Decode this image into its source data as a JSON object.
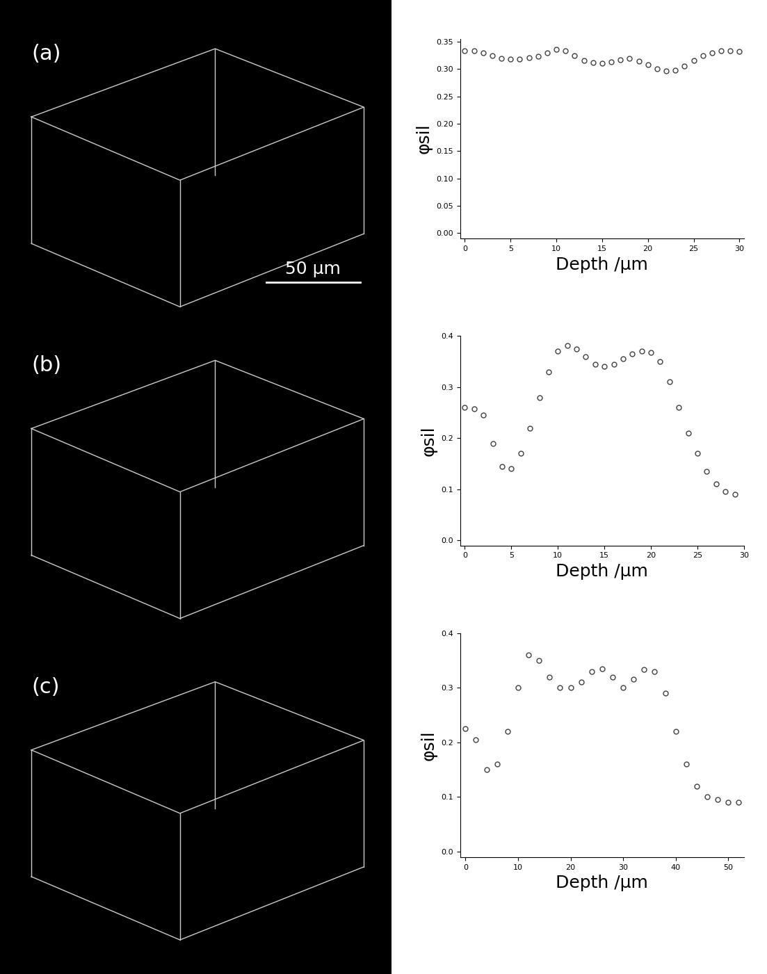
{
  "panels": [
    {
      "label": "(a)"
    },
    {
      "label": "(b)"
    },
    {
      "label": "(c)"
    }
  ],
  "scale_bar": "50 μm",
  "chart_data": [
    {
      "type": "scatter",
      "x_label": "Depth /μm",
      "y_label": "φsil",
      "marker": "o",
      "line_style": "none",
      "color": "#404040",
      "x": [
        0,
        1,
        2,
        3,
        4,
        5,
        6,
        7,
        8,
        9,
        10,
        11,
        12,
        13,
        14,
        15,
        16,
        17,
        18,
        19,
        20,
        21,
        22,
        23,
        24,
        25,
        26,
        27,
        28,
        29,
        30
      ],
      "values": [
        0.333,
        0.333,
        0.33,
        0.324,
        0.32,
        0.318,
        0.318,
        0.321,
        0.323,
        0.33,
        0.336,
        0.334,
        0.325,
        0.316,
        0.312,
        0.311,
        0.313,
        0.317,
        0.319,
        0.315,
        0.308,
        0.3,
        0.296,
        0.298,
        0.306,
        0.316,
        0.324,
        0.33,
        0.334,
        0.333,
        0.332
      ],
      "xlim": [
        -0.5,
        30.5
      ],
      "xticks": [
        0,
        5,
        10,
        15,
        20,
        25,
        30
      ],
      "ylim": [
        -0.01,
        0.355
      ],
      "yticks": [
        {
          "value": 0.0,
          "label": "0.00"
        },
        {
          "value": 0.05,
          "label": "0.05"
        },
        {
          "value": 0.1,
          "label": "0.10"
        },
        {
          "value": 0.15,
          "label": "0.15"
        },
        {
          "value": 0.2,
          "label": "0.20"
        },
        {
          "value": 0.25,
          "label": "0.25"
        },
        {
          "value": 0.3,
          "label": "0.30"
        },
        {
          "value": 0.35,
          "label": "0.35"
        }
      ]
    },
    {
      "type": "scatter",
      "x_label": "Depth /μm",
      "y_label": "φsil",
      "marker": "o",
      "line_style": "none",
      "color": "#404040",
      "x": [
        0,
        1,
        2,
        3,
        4,
        5,
        6,
        7,
        8,
        9,
        10,
        11,
        12,
        13,
        14,
        15,
        16,
        17,
        18,
        19,
        20,
        21,
        22,
        23,
        24,
        25,
        26,
        27,
        28,
        29
      ],
      "values": [
        0.26,
        0.258,
        0.245,
        0.19,
        0.145,
        0.14,
        0.17,
        0.22,
        0.28,
        0.33,
        0.37,
        0.382,
        0.375,
        0.36,
        0.345,
        0.34,
        0.345,
        0.355,
        0.365,
        0.37,
        0.368,
        0.35,
        0.31,
        0.26,
        0.21,
        0.17,
        0.135,
        0.11,
        0.095,
        0.09
      ],
      "xlim": [
        -0.5,
        30
      ],
      "xticks": [
        0,
        5,
        10,
        15,
        20,
        25,
        30
      ],
      "ylim": [
        -0.01,
        0.4
      ],
      "yticks": [
        {
          "value": 0.0,
          "label": "0.0"
        },
        {
          "value": 0.1,
          "label": "0.1"
        },
        {
          "value": 0.2,
          "label": "0.2"
        },
        {
          "value": 0.3,
          "label": "0.3"
        },
        {
          "value": 0.4,
          "label": "0.4"
        }
      ]
    },
    {
      "type": "scatter",
      "x_label": "Depth /μm",
      "y_label": "φsil",
      "marker": "o",
      "line_style": "none",
      "color": "#404040",
      "x": [
        0,
        2,
        4,
        6,
        8,
        10,
        12,
        14,
        16,
        18,
        20,
        22,
        24,
        26,
        28,
        30,
        32,
        34,
        36,
        38,
        40,
        42,
        44,
        46,
        48,
        50,
        52
      ],
      "values": [
        0.225,
        0.205,
        0.15,
        0.16,
        0.22,
        0.3,
        0.36,
        0.35,
        0.32,
        0.3,
        0.3,
        0.31,
        0.33,
        0.335,
        0.32,
        0.3,
        0.315,
        0.333,
        0.33,
        0.29,
        0.22,
        0.16,
        0.12,
        0.1,
        0.095,
        0.09,
        0.09
      ],
      "xlim": [
        -1,
        53
      ],
      "xticks": [
        0,
        10,
        20,
        30,
        40,
        50
      ],
      "ylim": [
        -0.01,
        0.4
      ],
      "yticks": [
        {
          "value": 0.0,
          "label": "0.0"
        },
        {
          "value": 0.1,
          "label": "0.1"
        },
        {
          "value": 0.2,
          "label": "0.2"
        },
        {
          "value": 0.3,
          "label": "0.3"
        },
        {
          "value": 0.4,
          "label": "0.4"
        }
      ]
    }
  ]
}
